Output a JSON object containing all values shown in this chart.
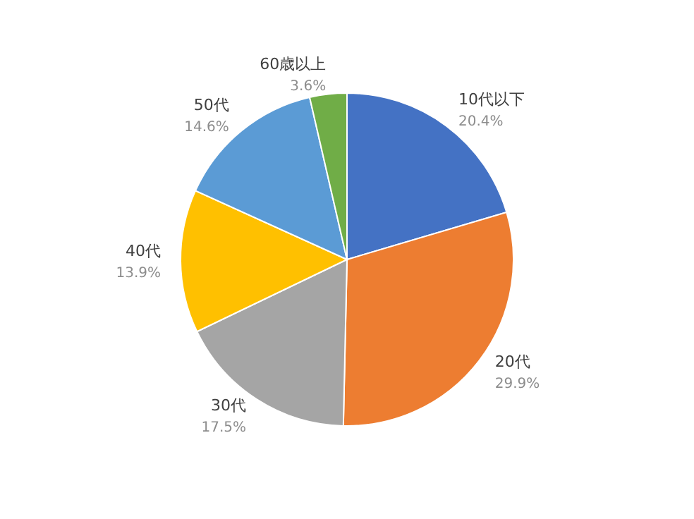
{
  "chart_data": {
    "type": "pie",
    "categories": [
      "10代以下",
      "20代",
      "30代",
      "40代",
      "50代",
      "60歳以上"
    ],
    "values": [
      20.4,
      29.9,
      17.5,
      13.9,
      14.6,
      3.6
    ],
    "value_labels": [
      "20.4%",
      "29.9%",
      "17.5%",
      "13.9%",
      "14.6%",
      "3.6%"
    ],
    "colors": [
      "#4472c4",
      "#ed7d31",
      "#a5a5a5",
      "#ffc000",
      "#5b9bd5",
      "#70ad47"
    ],
    "legend": false
  }
}
